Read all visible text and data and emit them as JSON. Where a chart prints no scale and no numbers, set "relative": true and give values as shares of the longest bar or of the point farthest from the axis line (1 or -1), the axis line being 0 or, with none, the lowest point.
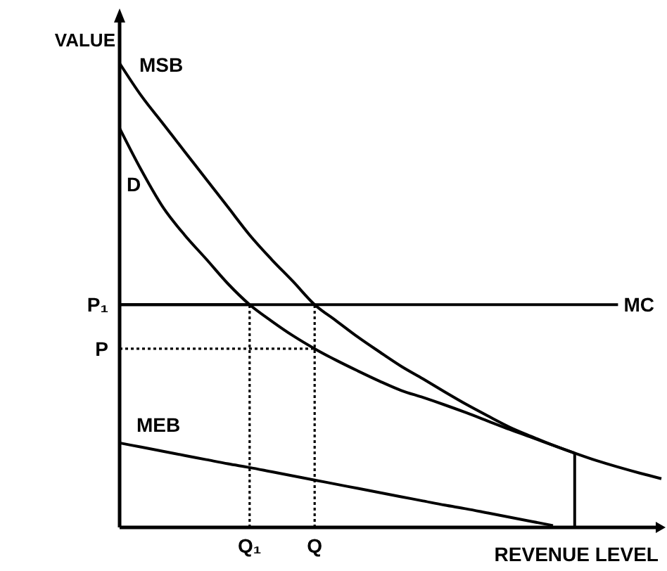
{
  "chart_data": {
    "type": "line",
    "relative": true,
    "xlabel": "REVENUE LEVEL",
    "ylabel": "VALUE",
    "categories": [
      null,
      null,
      null,
      null,
      null,
      null,
      "Q₁",
      null,
      null,
      "Q",
      null,
      null,
      null,
      null,
      null,
      null,
      null,
      null,
      null,
      null,
      null,
      null,
      null,
      null,
      null,
      null
    ],
    "ref_lines": [
      {
        "axis": "y",
        "value": 0.48,
        "label": "P₁",
        "line_style": "solid"
      },
      {
        "axis": "y",
        "value": 0.385,
        "label": "P",
        "line_style": "dotted"
      },
      {
        "axis": "x",
        "value": "Q₁",
        "line_style": "dotted"
      },
      {
        "axis": "x",
        "value": "Q",
        "line_style": "dotted"
      }
    ],
    "series": [
      {
        "name": "MSB",
        "color": "#000000",
        "values": [
          1.0,
          0.93,
          0.87,
          0.81,
          0.75,
          0.69,
          0.63,
          0.578,
          0.53,
          0.48,
          0.445,
          0.41,
          0.378,
          0.347,
          0.32,
          0.292,
          0.265,
          0.24,
          0.216,
          0.196,
          0.177,
          0.16,
          0.144,
          0.13,
          0.117,
          0.105
        ]
      },
      {
        "name": "D",
        "color": "#000000",
        "values": [
          0.86,
          0.77,
          0.69,
          0.63,
          0.578,
          0.525,
          0.48,
          0.445,
          0.413,
          0.385,
          0.36,
          0.337,
          0.315,
          0.295,
          0.28,
          0.264,
          0.247,
          0.229,
          0.211,
          0.194,
          0.177,
          0.16,
          null,
          null,
          null,
          null
        ]
      },
      {
        "name": "MC",
        "color": "#000000",
        "values": [
          0.48,
          0.48,
          0.48,
          0.48,
          0.48,
          0.48,
          0.48,
          0.48,
          0.48,
          0.48,
          0.48,
          0.48,
          0.48,
          0.48,
          0.48,
          0.48,
          0.48,
          0.48,
          0.48,
          0.48,
          0.48,
          0.48,
          0.48,
          0.48,
          null,
          null
        ]
      },
      {
        "name": "MEB",
        "color": "#000000",
        "values": [
          0.182,
          0.173,
          0.164,
          0.155,
          0.146,
          0.137,
          0.129,
          0.12,
          0.111,
          0.102,
          0.093,
          0.084,
          0.075,
          0.066,
          0.057,
          0.048,
          0.04,
          0.031,
          0.022,
          0.013,
          0.004,
          null,
          null,
          null,
          null,
          null
        ]
      }
    ]
  }
}
